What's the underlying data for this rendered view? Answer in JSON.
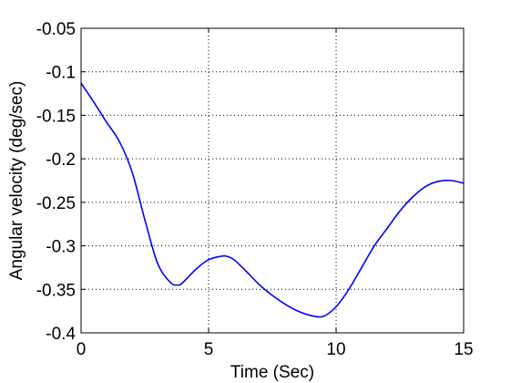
{
  "chart_data": {
    "type": "line",
    "title": "",
    "xlabel": "Time (Sec)",
    "ylabel": "Angular velocity (deg/sec)",
    "xlim": [
      0,
      15
    ],
    "ylim": [
      -0.4,
      -0.05
    ],
    "xticks": [
      0,
      5,
      10,
      15
    ],
    "xtick_labels": [
      "0",
      "5",
      "10",
      "15"
    ],
    "yticks": [
      -0.4,
      -0.35,
      -0.3,
      -0.25,
      -0.2,
      -0.15,
      -0.1,
      -0.05
    ],
    "ytick_labels": [
      "-0.4",
      "-0.35",
      "-0.3",
      "-0.25",
      "-0.2",
      "-0.15",
      "-0.1",
      "-0.05"
    ],
    "grid": true,
    "grid_style": "dotted",
    "legend": "none",
    "colors": {
      "line": "#0000ff",
      "axes": "#000000",
      "grid": "#000000",
      "background": "#ffffff"
    },
    "series": [
      {
        "x": [
          0,
          0.5,
          1.0,
          1.5,
          2.0,
          2.5,
          3.0,
          3.5,
          3.8,
          4.0,
          4.5,
          5.0,
          5.5,
          5.7,
          6.0,
          6.5,
          7.0,
          7.5,
          8.0,
          8.5,
          9.0,
          9.5,
          10.0,
          10.5,
          11.0,
          11.5,
          12.0,
          12.5,
          13.0,
          13.5,
          14.0,
          14.5,
          15.0
        ],
        "y": [
          -0.113,
          -0.135,
          -0.158,
          -0.18,
          -0.215,
          -0.27,
          -0.32,
          -0.342,
          -0.345,
          -0.342,
          -0.327,
          -0.316,
          -0.312,
          -0.312,
          -0.316,
          -0.33,
          -0.345,
          -0.357,
          -0.367,
          -0.375,
          -0.38,
          -0.381,
          -0.37,
          -0.35,
          -0.325,
          -0.3,
          -0.28,
          -0.26,
          -0.244,
          -0.232,
          -0.226,
          -0.225,
          -0.228
        ]
      }
    ]
  }
}
